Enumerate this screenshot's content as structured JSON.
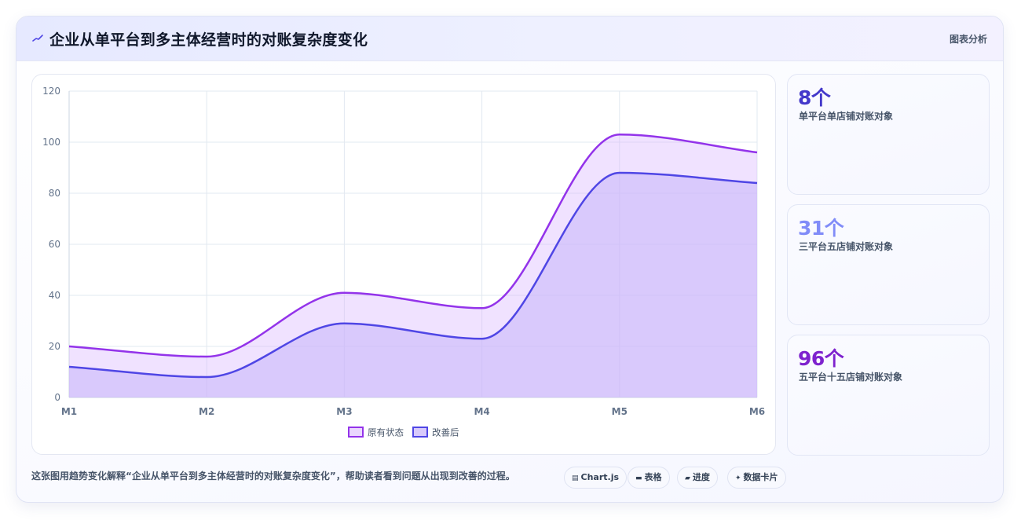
{
  "header": {
    "title": "企业从单平台到多主体经营时的对账复杂度变化",
    "tag": "图表分析",
    "icon": "trend-icon"
  },
  "chart_data": {
    "type": "area",
    "categories": [
      "M1",
      "M2",
      "M3",
      "M4",
      "M5",
      "M6"
    ],
    "ylim": [
      0,
      120
    ],
    "yticks": [
      0,
      20,
      40,
      60,
      80,
      100,
      120
    ],
    "grid": true,
    "legend_position": "bottom",
    "title": "",
    "xlabel": "",
    "ylabel": "",
    "series": [
      {
        "name": "原有状态",
        "values": [
          20,
          16,
          41,
          35,
          103,
          96
        ],
        "color": "#9333ea"
      },
      {
        "name": "改善后",
        "values": [
          12,
          8,
          29,
          23,
          88,
          84
        ],
        "color": "#4f46e5"
      }
    ]
  },
  "stats": [
    {
      "value": "8个",
      "label": "单平台单店铺对账对象",
      "color": "#4338ca"
    },
    {
      "value": "31个",
      "label": "三平台五店铺对账对象",
      "color": "#818cf8"
    },
    {
      "value": "96个",
      "label": "五平台十五店铺对账对象",
      "color": "#7e22ce"
    }
  ],
  "caption": "这张图用趋势变化解释“企业从单平台到多主体经营时的对账复杂度变化”，帮助读者看到问题从出现到改善的过程。",
  "chips": [
    {
      "icon": "chart-icon",
      "glyph": "▤",
      "label": "Chart.js"
    },
    {
      "icon": "table-icon",
      "glyph": "▬",
      "label": "表格"
    },
    {
      "icon": "progress-icon",
      "glyph": "▰",
      "label": "进度"
    },
    {
      "icon": "sparkle-icon",
      "glyph": "✦",
      "label": "数据卡片"
    }
  ]
}
